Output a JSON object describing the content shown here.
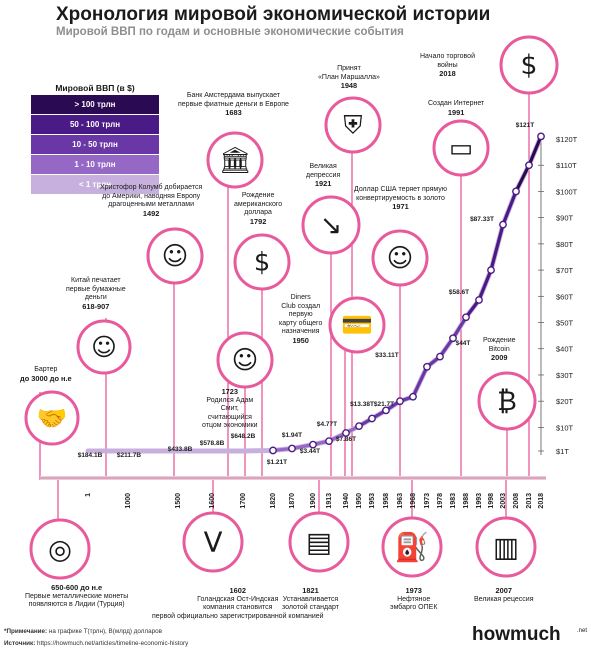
{
  "title": "Хронология мировой экономической истории",
  "subtitle": "Мировой ВВП по годам и основные экономические события",
  "legend": {
    "title": "Мировой ВВП (в $)",
    "items": [
      {
        "label": "> 100 трлн",
        "color": "#2a0a52"
      },
      {
        "label": "50 - 100 трлн",
        "color": "#4a1a86"
      },
      {
        "label": "10 - 50 трлн",
        "color": "#6a38a6"
      },
      {
        "label": "1 - 10 трлн",
        "color": "#9468c4"
      },
      {
        "label": "< 1 трлн",
        "color": "#c8b0de"
      }
    ]
  },
  "colors": {
    "accent": "#e85a9c",
    "pink_light": "#f7c6dc",
    "purple_dark": "#3a1070",
    "purple_light": "#c8b0de"
  },
  "chart_data": {
    "type": "line",
    "title": "",
    "x": [
      "1",
      "1000",
      "1500",
      "1600",
      "1700",
      "1820",
      "1870",
      "1900",
      "1913",
      "1940",
      "1950",
      "1953",
      "1958",
      "1963",
      "1968",
      "1973",
      "1978",
      "1983",
      "1988",
      "1993",
      "1998",
      "2003",
      "2008",
      "2013",
      "2018"
    ],
    "value_labels": [
      "$184.1B",
      "$211.7B",
      "$433.8B",
      "$578.8B",
      "$648.2B",
      "$1.21T",
      "$1.94T",
      "$3.44T",
      "$4.77T",
      "$7.86T",
      "$13.38T",
      "$21.7T",
      "$33.11T",
      "$44T",
      "$58.6T",
      "$87.33T",
      "$121T"
    ],
    "value_label_x": [
      "1",
      "1000",
      "1500",
      "1600",
      "1700",
      "1820",
      "1870",
      "1900",
      "1913",
      "1940",
      "1953",
      "1968",
      "1973",
      "1988",
      "1993",
      "2003",
      "2018"
    ],
    "y_ticks": [
      "$1T",
      "$10T",
      "$20T",
      "$30T",
      "$40T",
      "$50T",
      "$60T",
      "$70T",
      "$80T",
      "$90T",
      "$100T",
      "$110T",
      "$120T"
    ],
    "ylim": [
      0,
      120
    ]
  },
  "events_top": [
    {
      "text": "Бартер",
      "year": "до 3000 до н.е",
      "icon": "handshake-icon"
    },
    {
      "text": "Китай печатает\nпервые бумажные\nденьги",
      "year": "618-907",
      "icon": "chinese-man-icon"
    },
    {
      "text": "Христофор Колумб добирается\nдо Америки, наводняя Европу\nдрагоценными металлами",
      "year": "1492",
      "icon": "columbus-portrait-icon"
    },
    {
      "text": "Банк Амстердама выпускает\nпервые фиатные деньги в Европе",
      "year": "1683",
      "icon": "bank-building-icon"
    },
    {
      "text": "Рождение\nамериканского\nдоллара",
      "year": "1792",
      "icon": "dollar-bill-icon"
    },
    {
      "text": "Родился Адам\nСмит,\nсчитающийся\nотцом экономики",
      "year": "1723",
      "icon": "adam-smith-portrait-icon"
    },
    {
      "text": "Diners\nClub создал\nпервую\nкарту общего\nназначения",
      "year": "1950",
      "icon": "credit-card-icon"
    },
    {
      "text": "Великая\nдепрессия",
      "year": "1921",
      "icon": "falling-market-icon"
    },
    {
      "text": "Принят\n«План Маршалла»",
      "year": "1948",
      "icon": "marshall-plan-shield-icon"
    },
    {
      "text": "Доллар США теряет прямую\nконвертируемость в золото",
      "year": "1971",
      "icon": "nixon-portrait-icon"
    },
    {
      "text": "Создан Интернет",
      "year": "1991",
      "icon": "computer-icon"
    },
    {
      "text": "Начало торговой\nвойны",
      "year": "2018",
      "icon": "trade-war-icon"
    },
    {
      "text": "Рождение\nBitcoin",
      "year": "2009",
      "icon": "bitcoin-globe-icon"
    }
  ],
  "events_bottom": [
    {
      "year": "650-600 до н.е",
      "text": "Первые металлические монеты\nпоявляются в Лидии (Турция)",
      "icon": "coins-pile-icon"
    },
    {
      "year": "1602",
      "text": "Голандская Ост-Индская\nкомпания становится\nпервой официально зарегистрированной компанией",
      "icon": "voc-logo-icon"
    },
    {
      "year": "1821",
      "text": "Устанавливается\nзолотой стандарт",
      "icon": "gold-bars-icon"
    },
    {
      "year": "1973",
      "text": "Нефтяное\nэмбарго ОПЕК",
      "icon": "oil-barrels-icon"
    },
    {
      "year": "2007",
      "text": "Великая рецессия",
      "icon": "skyscrapers-icon"
    }
  ],
  "footnote_label": "*Примечание:",
  "footnote_text": "на графике Т(трлн), B(млрд) долларов",
  "source_label": "Источник:",
  "source_text": "https://howmuch.net/articles/timeline-economic-history",
  "brand": "howmuch",
  "brand_suffix": ".net"
}
